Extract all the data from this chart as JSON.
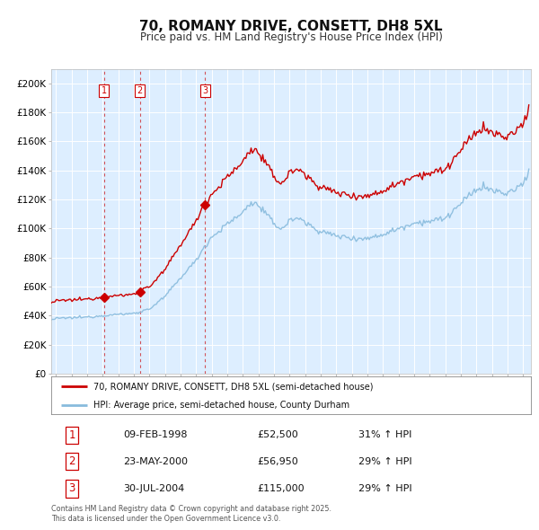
{
  "title": "70, ROMANY DRIVE, CONSETT, DH8 5XL",
  "subtitle": "Price paid vs. HM Land Registry's House Price Index (HPI)",
  "background_color": "#ffffff",
  "plot_bg_color": "#ddeeff",
  "grid_color": "#ffffff",
  "sale_dates_num": [
    1998.1,
    2000.39,
    2004.58
  ],
  "sale_prices": [
    52500,
    56950,
    115000
  ],
  "sale_labels": [
    "1",
    "2",
    "3"
  ],
  "legend_property": "70, ROMANY DRIVE, CONSETT, DH8 5XL (semi-detached house)",
  "legend_hpi": "HPI: Average price, semi-detached house, County Durham",
  "property_line_color": "#cc0000",
  "hpi_line_color": "#88bbdd",
  "table_rows": [
    [
      "1",
      "09-FEB-1998",
      "£52,500",
      "31% ↑ HPI"
    ],
    [
      "2",
      "23-MAY-2000",
      "£56,950",
      "29% ↑ HPI"
    ],
    [
      "3",
      "30-JUL-2004",
      "£115,000",
      "29% ↑ HPI"
    ]
  ],
  "footer": "Contains HM Land Registry data © Crown copyright and database right 2025.\nThis data is licensed under the Open Government Licence v3.0.",
  "ylim": [
    0,
    210000
  ],
  "yticks": [
    0,
    20000,
    40000,
    60000,
    80000,
    100000,
    120000,
    140000,
    160000,
    180000,
    200000
  ],
  "xlim_start": 1994.7,
  "xlim_end": 2025.5,
  "hpi_anchors": {
    "1994.7": 37000,
    "1995.0": 38000,
    "1996.0": 38500,
    "1997.0": 39000,
    "1998.0": 40000,
    "1999.0": 40800,
    "2000.0": 41500,
    "2001.0": 44500,
    "2002.0": 53000,
    "2003.0": 66000,
    "2004.0": 78000,
    "2004.5": 87000,
    "2005.0": 94000,
    "2006.0": 103000,
    "2007.0": 111000,
    "2007.5": 118000,
    "2008.0": 116000,
    "2008.5": 110000,
    "2009.0": 103000,
    "2009.5": 100000,
    "2010.0": 105000,
    "2010.5": 108000,
    "2011.0": 104000,
    "2012.0": 98000,
    "2013.0": 95000,
    "2014.0": 93500,
    "2015.0": 93000,
    "2016.0": 96000,
    "2017.0": 100000,
    "2018.0": 104000,
    "2019.0": 105000,
    "2020.0": 107000,
    "2021.0": 117000,
    "2022.0": 127000,
    "2022.5": 129000,
    "2023.0": 126000,
    "2024.0": 124000,
    "2024.5": 127000,
    "2025.0": 131000,
    "2025.4": 140000
  }
}
